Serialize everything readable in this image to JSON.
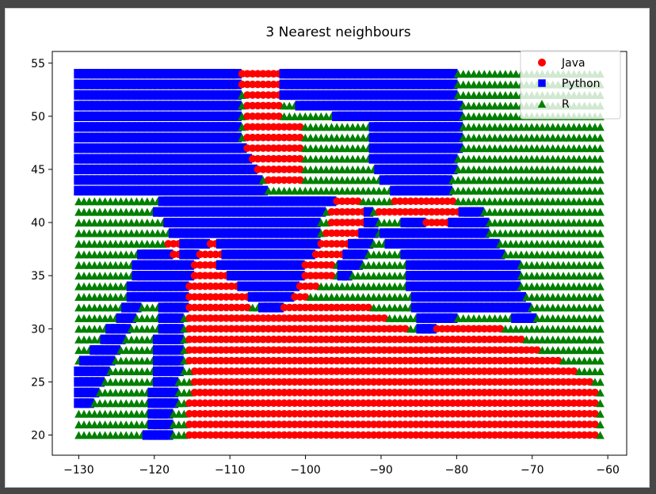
{
  "chart_data": {
    "type": "scatter",
    "title": "3 Nearest neighbours",
    "xlabel": "",
    "ylabel": "",
    "xlim": [
      -133.5,
      -57.5
    ],
    "ylim": [
      18.1,
      56.1
    ],
    "x_ticks": [
      -130,
      -120,
      -110,
      -100,
      -90,
      -80,
      -70,
      -60
    ],
    "y_ticks": [
      20,
      25,
      30,
      35,
      40,
      45,
      50,
      55
    ],
    "grid": false,
    "legend_placement": "top-right",
    "grid_sampling": {
      "x_start": -130,
      "x_end": -61,
      "x_count": 100,
      "y_start": 20,
      "y_end": 54,
      "y_count": 35
    },
    "series": [
      {
        "name": "Java",
        "color": "#ff0000",
        "marker": "circle"
      },
      {
        "name": "Python",
        "color": "#0000ff",
        "marker": "square"
      },
      {
        "name": "R",
        "color": "#008000",
        "marker": "triangle"
      }
    ],
    "regions": {
      "Python": [
        [
          [
            -130.5,
            54.3
          ],
          [
            -108.5,
            54.3
          ],
          [
            -108.5,
            47.5
          ],
          [
            -107,
            45.8
          ],
          [
            -105.5,
            43.7
          ],
          [
            -104.5,
            42.5
          ],
          [
            -130.5,
            42.5
          ]
        ],
        [
          [
            -103,
            54.3
          ],
          [
            -80.5,
            54.3
          ],
          [
            -80,
            52
          ],
          [
            -79.5,
            49.5
          ],
          [
            -80,
            45.5
          ],
          [
            -81,
            43
          ],
          [
            -84,
            42.5
          ],
          [
            -87,
            42.4
          ],
          [
            -89,
            43.2
          ],
          [
            -91,
            45.5
          ],
          [
            -91,
            49
          ],
          [
            -101,
            51
          ],
          [
            -103,
            52
          ]
        ],
        [
          [
            -120.5,
            41.8
          ],
          [
            -117.5,
            42.2
          ],
          [
            -96,
            42.2
          ],
          [
            -98,
            40.8
          ],
          [
            -98,
            36
          ],
          [
            -102,
            33
          ],
          [
            -105,
            30
          ],
          [
            -104,
            26.5
          ],
          [
            -106,
            32.5
          ],
          [
            -115,
            36.5
          ],
          [
            -117,
            38.5
          ]
        ],
        [
          [
            -122,
            37
          ],
          [
            -120.5,
            38
          ],
          [
            -116,
            37
          ],
          [
            -114.5,
            36
          ],
          [
            -114.5,
            32
          ],
          [
            -116,
            32.5
          ],
          [
            -118,
            33
          ],
          [
            -124,
            32
          ]
        ],
        [
          [
            -122,
            33.5
          ],
          [
            -119,
            33
          ],
          [
            -120,
            26
          ],
          [
            -121,
            20
          ],
          [
            -118,
            19.8
          ],
          [
            -117,
            24
          ],
          [
            -116,
            32
          ]
        ],
        [
          [
            -131,
            23
          ],
          [
            -128.5,
            22.5
          ],
          [
            -125,
            28
          ],
          [
            -123,
            30.5
          ],
          [
            -121.5,
            33.5
          ],
          [
            -124,
            32
          ],
          [
            -127,
            29
          ],
          [
            -130.5,
            26
          ]
        ],
        [
          [
            -91,
            38.5
          ],
          [
            -87,
            37.5
          ],
          [
            -86,
            33
          ],
          [
            -84.5,
            29
          ],
          [
            -82,
            30.5
          ],
          [
            -78,
            31.5
          ],
          [
            -74,
            31.5
          ],
          [
            -70,
            30
          ],
          [
            -68,
            27.5
          ],
          [
            -73,
            36.5
          ],
          [
            -75.5,
            38.5
          ],
          [
            -76,
            40
          ],
          [
            -77,
            42
          ],
          [
            -82,
            42
          ]
        ],
        [
          [
            -95,
            34
          ],
          [
            -91.5,
            37.5
          ],
          [
            -90.5,
            40
          ],
          [
            -92.5,
            42
          ],
          [
            -96,
            40.5
          ]
        ],
        [
          [
            -86,
            37
          ],
          [
            -84,
            36
          ],
          [
            -81,
            33.5
          ],
          [
            -78.5,
            34
          ],
          [
            -75,
            33.5
          ],
          [
            -72,
            33
          ],
          [
            -72,
            36
          ]
        ]
      ],
      "R": [
        [
          [
            -130.5,
            41.7
          ],
          [
            -119,
            41.7
          ],
          [
            -117,
            39.5
          ],
          [
            -122,
            37
          ],
          [
            -125,
            34.2
          ],
          [
            -129,
            29
          ],
          [
            -130.5,
            25
          ]
        ],
        [
          [
            -130.5,
            22.5
          ],
          [
            -128,
            25
          ],
          [
            -126,
            27
          ],
          [
            -123.5,
            30
          ],
          [
            -121.5,
            33
          ],
          [
            -120.5,
            30
          ],
          [
            -119,
            24
          ],
          [
            -119.5,
            19.5
          ],
          [
            -130.5,
            19.5
          ]
        ],
        [
          [
            -119,
            19.5
          ],
          [
            -117.5,
            19.5
          ],
          [
            -116.5,
            22
          ],
          [
            -116,
            30
          ],
          [
            -117,
            32.5
          ],
          [
            -118.5,
            30
          ]
        ],
        [
          [
            -95,
            38
          ],
          [
            -90,
            38.5
          ],
          [
            -88,
            36.5
          ],
          [
            -88.5,
            33
          ],
          [
            -92,
            33
          ],
          [
            -94,
            33.5
          ]
        ],
        [
          [
            -93,
            42.2
          ],
          [
            -89.5,
            47
          ],
          [
            -87.5,
            49
          ],
          [
            -86,
            49.5
          ],
          [
            -85,
            43.5
          ],
          [
            -87,
            42.2
          ],
          [
            -88.5,
            41
          ]
        ],
        [
          [
            -81,
            54.3
          ],
          [
            -61,
            54.3
          ],
          [
            -61,
            26
          ],
          [
            -64,
            26.5
          ],
          [
            -66,
            30
          ],
          [
            -67,
            36.5
          ],
          [
            -70,
            40
          ],
          [
            -75,
            42.5
          ],
          [
            -79,
            43
          ],
          [
            -80.5,
            47.5
          ],
          [
            -80,
            53
          ]
        ],
        [
          [
            -82.5,
            32.5
          ],
          [
            -80,
            32.5
          ],
          [
            -79.5,
            31.5
          ],
          [
            -81.5,
            31
          ]
        ]
      ],
      "Java": [
        [
          [
            -108.5,
            54.3
          ],
          [
            -103.5,
            54.3
          ],
          [
            -103.5,
            49.5
          ],
          [
            -100.5,
            49
          ],
          [
            -100,
            44.5
          ],
          [
            -101.5,
            43
          ],
          [
            -105,
            43.5
          ],
          [
            -108,
            46.5
          ]
        ],
        [
          [
            -114.5,
            37.5
          ],
          [
            -112,
            38.5
          ],
          [
            -111,
            37.5
          ],
          [
            -111.5,
            36
          ],
          [
            -108,
            33.5
          ],
          [
            -107,
            32
          ],
          [
            -104,
            31.5
          ],
          [
            -102,
            32.7
          ],
          [
            -101,
            34.5
          ],
          [
            -99,
            36.5
          ],
          [
            -98,
            38
          ],
          [
            -97,
            40.5
          ],
          [
            -96,
            42.2
          ],
          [
            -93,
            42.2
          ],
          [
            -92,
            40.5
          ],
          [
            -88,
            40
          ],
          [
            -86,
            41
          ],
          [
            -82,
            39
          ],
          [
            -80,
            40.5
          ],
          [
            -79,
            41.7
          ],
          [
            -83,
            42.5
          ],
          [
            -88.5,
            42
          ],
          [
            -91.5,
            40.5
          ],
          [
            -93.5,
            38.5
          ],
          [
            -97,
            35
          ],
          [
            -100.5,
            32.5
          ],
          [
            -92,
            32.5
          ],
          [
            -88,
            30.5
          ],
          [
            -84,
            29.2
          ],
          [
            -82,
            31
          ],
          [
            -75,
            30.5
          ],
          [
            -70,
            28.5
          ],
          [
            -66,
            27
          ],
          [
            -64,
            26
          ],
          [
            -61,
            24.5
          ],
          [
            -61,
            19.5
          ],
          [
            -116,
            19.5
          ],
          [
            -115,
            25
          ],
          [
            -116,
            30
          ],
          [
            -115.5,
            34
          ]
        ],
        [
          [
            -118.5,
            38.5
          ],
          [
            -117,
            39
          ],
          [
            -116.5,
            37
          ],
          [
            -118,
            36.5
          ]
        ],
        [
          [
            -100.5,
            36
          ],
          [
            -97,
            36.5
          ],
          [
            -96,
            35
          ],
          [
            -99,
            34
          ]
        ]
      ]
    }
  },
  "legend": {
    "items": [
      {
        "label": "Java",
        "color": "#ff0000",
        "marker": "circle"
      },
      {
        "label": "Python",
        "color": "#0000ff",
        "marker": "square"
      },
      {
        "label": "R",
        "color": "#008000",
        "marker": "triangle"
      }
    ]
  }
}
